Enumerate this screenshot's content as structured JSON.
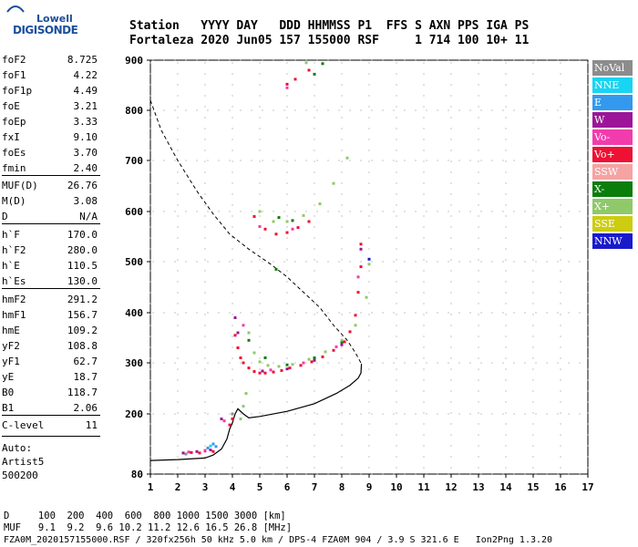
{
  "logo": {
    "line1": "Lowell",
    "line2": "DIGISONDE"
  },
  "header": {
    "row1": "Station   YYYY DAY   DDD HHMMSS P1  FFS S AXN PPS IGA PS",
    "row2": "Fortaleza 2020 Jun05 157 155000 RSF     1 714 100 10+ 11"
  },
  "params": {
    "group1": [
      {
        "label": "foF2",
        "value": "8.725"
      },
      {
        "label": "foF1",
        "value": "4.22"
      },
      {
        "label": "foF1p",
        "value": "4.49"
      },
      {
        "label": "foE",
        "value": "3.21"
      },
      {
        "label": "foEp",
        "value": "3.33"
      },
      {
        "label": "fxI",
        "value": "9.10"
      },
      {
        "label": "foEs",
        "value": "3.70"
      },
      {
        "label": "fmin",
        "value": "2.40"
      }
    ],
    "group2": [
      {
        "label": "MUF(D)",
        "value": "26.76"
      },
      {
        "label": "M(D)",
        "value": "3.08"
      },
      {
        "label": "D",
        "value": "N/A"
      }
    ],
    "group3": [
      {
        "label": "h`F",
        "value": "170.0"
      },
      {
        "label": "h`F2",
        "value": "280.0"
      },
      {
        "label": "h`E",
        "value": "110.5"
      },
      {
        "label": "h`Es",
        "value": "130.0"
      }
    ],
    "group4": [
      {
        "label": "hmF2",
        "value": "291.2"
      },
      {
        "label": "hmF1",
        "value": "156.7"
      },
      {
        "label": "hmE",
        "value": "109.2"
      },
      {
        "label": "yF2",
        "value": "108.8"
      },
      {
        "label": "yF1",
        "value": "62.7"
      },
      {
        "label": "yE",
        "value": "18.7"
      },
      {
        "label": "B0",
        "value": "118.7"
      },
      {
        "label": "B1",
        "value": "2.06"
      }
    ],
    "clevel": {
      "label": "C-level",
      "value": "11"
    },
    "auto": [
      "Auto:",
      "Artist5",
      "500200"
    ]
  },
  "legend": [
    {
      "label": "NoVal",
      "color": "#8c8c8c"
    },
    {
      "label": "NNE",
      "color": "#19d4f2"
    },
    {
      "label": "E",
      "color": "#3399ee"
    },
    {
      "label": "W",
      "color": "#9c1599"
    },
    {
      "label": "Vo-",
      "color": "#f23cad"
    },
    {
      "label": "Vo+",
      "color": "#ee1133"
    },
    {
      "label": "SSW",
      "color": "#f5a3a3"
    },
    {
      "label": "X-",
      "color": "#0b7d0b"
    },
    {
      "label": "X+",
      "color": "#8fc96a"
    },
    {
      "label": "SSE",
      "color": "#cccc11"
    },
    {
      "label": "NNW",
      "color": "#1a1acc"
    }
  ],
  "footer": {
    "row1": "D     100  200  400  600  800 1000 1500 3000 [km]",
    "row2": "MUF   9.1  9.2  9.6 10.2 11.2 12.6 16.5 26.8 [MHz]",
    "row3": "FZA0M_2020157155000.RSF / 320fx256h 50 kHz 5.0 km / DPS-4 FZA0M 904 / 3.9 S 321.6 E   Ion2Png 1.3.20"
  },
  "chart_data": {
    "type": "scatter",
    "x_ticks": [
      "1",
      "2",
      "3",
      "4",
      "5",
      "6",
      "7",
      "8",
      "9",
      "10",
      "11",
      "12",
      "13",
      "14",
      "15",
      "16",
      "17"
    ],
    "y_ticks": [
      "80",
      "200",
      "300",
      "400",
      "500",
      "600",
      "700",
      "800",
      "900"
    ],
    "xlim": [
      1,
      17
    ],
    "ylim": [
      80,
      900
    ],
    "grid": true,
    "legend_position": "right",
    "series": [
      {
        "name": "Vo+",
        "color": "#ee1133",
        "points": [
          [
            2.5,
            123
          ],
          [
            2.8,
            122
          ],
          [
            3.0,
            126
          ],
          [
            3.3,
            125
          ],
          [
            3.9,
            178
          ],
          [
            4.0,
            190
          ],
          [
            4.1,
            355
          ],
          [
            4.2,
            330
          ],
          [
            4.3,
            310
          ],
          [
            4.4,
            300
          ],
          [
            4.6,
            290
          ],
          [
            4.8,
            283
          ],
          [
            5.0,
            280
          ],
          [
            5.2,
            280
          ],
          [
            5.5,
            282
          ],
          [
            5.8,
            285
          ],
          [
            6.1,
            290
          ],
          [
            6.5,
            295
          ],
          [
            6.9,
            302
          ],
          [
            7.3,
            312
          ],
          [
            7.7,
            325
          ],
          [
            8.1,
            342
          ],
          [
            8.3,
            362
          ],
          [
            8.5,
            395
          ],
          [
            8.6,
            440
          ],
          [
            8.7,
            490
          ],
          [
            8.7,
            535
          ],
          [
            4.8,
            590
          ],
          [
            5.2,
            565
          ],
          [
            5.6,
            555
          ],
          [
            6.0,
            558
          ],
          [
            6.4,
            568
          ],
          [
            6.8,
            580
          ],
          [
            6.0,
            852
          ],
          [
            6.3,
            862
          ],
          [
            6.8,
            880
          ]
        ]
      },
      {
        "name": "X+",
        "color": "#8fc96a",
        "points": [
          [
            4.3,
            190
          ],
          [
            4.4,
            215
          ],
          [
            4.5,
            240
          ],
          [
            4.6,
            360
          ],
          [
            4.8,
            320
          ],
          [
            5.0,
            302
          ],
          [
            5.3,
            295
          ],
          [
            5.7,
            293
          ],
          [
            6.2,
            297
          ],
          [
            6.8,
            307
          ],
          [
            7.4,
            322
          ],
          [
            8.0,
            345
          ],
          [
            8.5,
            375
          ],
          [
            8.9,
            430
          ],
          [
            9.0,
            495
          ],
          [
            5.0,
            600
          ],
          [
            5.5,
            580
          ],
          [
            6.0,
            580
          ],
          [
            6.6,
            592
          ],
          [
            7.2,
            615
          ],
          [
            7.7,
            655
          ],
          [
            8.2,
            705
          ],
          [
            6.7,
            895
          ]
        ]
      },
      {
        "name": "X-",
        "color": "#0b7d0b",
        "points": [
          [
            4.6,
            345
          ],
          [
            5.2,
            310
          ],
          [
            6.0,
            296
          ],
          [
            7.0,
            310
          ],
          [
            8.0,
            340
          ],
          [
            5.7,
            588
          ],
          [
            6.2,
            582
          ],
          [
            7.0,
            872
          ],
          [
            7.3,
            893
          ],
          [
            5.6,
            485
          ]
        ]
      },
      {
        "name": "W",
        "color": "#9c1599",
        "points": [
          [
            2.2,
            122
          ],
          [
            2.7,
            125
          ],
          [
            3.2,
            128
          ],
          [
            3.6,
            190
          ],
          [
            4.1,
            390
          ],
          [
            4.2,
            360
          ],
          [
            5.1,
            284
          ],
          [
            6.0,
            288
          ],
          [
            7.0,
            305
          ],
          [
            8.0,
            336
          ],
          [
            8.7,
            525
          ]
        ]
      },
      {
        "name": "Vo-",
        "color": "#f23cad",
        "points": [
          [
            2.4,
            124
          ],
          [
            3.0,
            127
          ],
          [
            3.7,
            186
          ],
          [
            4.4,
            375
          ],
          [
            5.4,
            286
          ],
          [
            6.6,
            300
          ],
          [
            7.8,
            332
          ],
          [
            8.6,
            470
          ],
          [
            5.0,
            570
          ],
          [
            6.2,
            565
          ],
          [
            6.0,
            845
          ]
        ]
      },
      {
        "name": "E",
        "color": "#3399ee",
        "points": [
          [
            3.1,
            132
          ],
          [
            3.3,
            140
          ],
          [
            3.4,
            135
          ]
        ]
      },
      {
        "name": "NNE",
        "color": "#19d4f2",
        "points": [
          [
            3.2,
            136
          ]
        ]
      },
      {
        "name": "NNW",
        "color": "#1a1acc",
        "points": [
          [
            9.0,
            505
          ]
        ]
      },
      {
        "name": "NoVal",
        "color": "#8c8c8c",
        "points": [
          [
            2.3,
            120
          ],
          [
            4.0,
            200
          ]
        ]
      }
    ],
    "profile_solid": [
      [
        1,
        107
      ],
      [
        2,
        109
      ],
      [
        3,
        112
      ],
      [
        3.3,
        118
      ],
      [
        3.6,
        130
      ],
      [
        3.8,
        150
      ],
      [
        3.9,
        170
      ],
      [
        4.0,
        182
      ],
      [
        4.1,
        200
      ],
      [
        4.2,
        210
      ],
      [
        4.4,
        200
      ],
      [
        4.6,
        192
      ],
      [
        5.0,
        195
      ],
      [
        6.0,
        205
      ],
      [
        7.0,
        220
      ],
      [
        7.8,
        240
      ],
      [
        8.3,
        256
      ],
      [
        8.6,
        270
      ],
      [
        8.7,
        280
      ],
      [
        8.72,
        298
      ]
    ],
    "profile_dashed": [
      [
        1,
        820
      ],
      [
        1.4,
        760
      ],
      [
        2.0,
        700
      ],
      [
        2.7,
        640
      ],
      [
        3.3,
        595
      ],
      [
        3.9,
        555
      ],
      [
        4.6,
        525
      ],
      [
        5.4,
        495
      ],
      [
        6.0,
        470
      ],
      [
        6.6,
        440
      ],
      [
        7.2,
        410
      ],
      [
        7.7,
        375
      ],
      [
        8.2,
        345
      ],
      [
        8.5,
        320
      ],
      [
        8.72,
        298
      ]
    ]
  }
}
